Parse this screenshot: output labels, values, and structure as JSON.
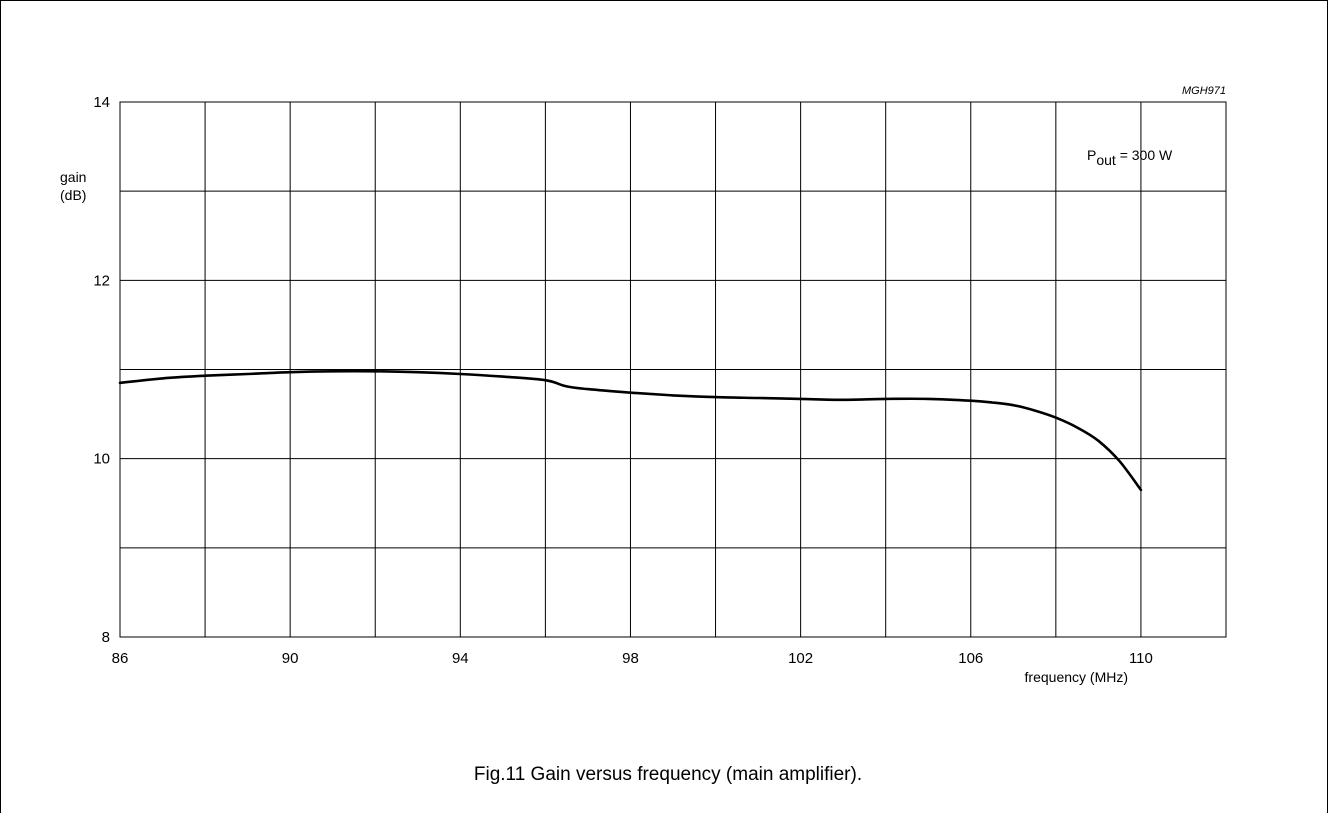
{
  "figure_code": "MGH971",
  "caption": "Fig.11  Gain versus frequency (main amplifier).",
  "annotation": {
    "base": "P",
    "subscript": "out",
    "rest": " = 300 W"
  },
  "chart_data": {
    "type": "line",
    "title": "",
    "ylabel_lines": [
      "gain",
      "(dB)"
    ],
    "xlabel": "frequency (MHz)",
    "xlim": [
      86,
      112
    ],
    "ylim": [
      8,
      14
    ],
    "x_ticks": [
      86,
      90,
      94,
      98,
      102,
      106,
      110
    ],
    "y_ticks": [
      8,
      10,
      12,
      14
    ],
    "x_grid_step": 2,
    "y_grid_step": 1,
    "grid": true,
    "series": [
      {
        "x": [
          86,
          87,
          88,
          89,
          90,
          91,
          92,
          93,
          94,
          95,
          96,
          96.5,
          97,
          98,
          99,
          100,
          101,
          102,
          103,
          104,
          105,
          106,
          106.5,
          107,
          107.5,
          108,
          108.5,
          109,
          109.5,
          110
        ],
        "y": [
          10.85,
          10.9,
          10.93,
          10.95,
          10.97,
          10.98,
          10.98,
          10.97,
          10.95,
          10.92,
          10.88,
          10.81,
          10.78,
          10.74,
          10.71,
          10.69,
          10.68,
          10.67,
          10.66,
          10.67,
          10.67,
          10.65,
          10.63,
          10.6,
          10.54,
          10.46,
          10.35,
          10.2,
          9.97,
          9.65
        ]
      }
    ]
  }
}
